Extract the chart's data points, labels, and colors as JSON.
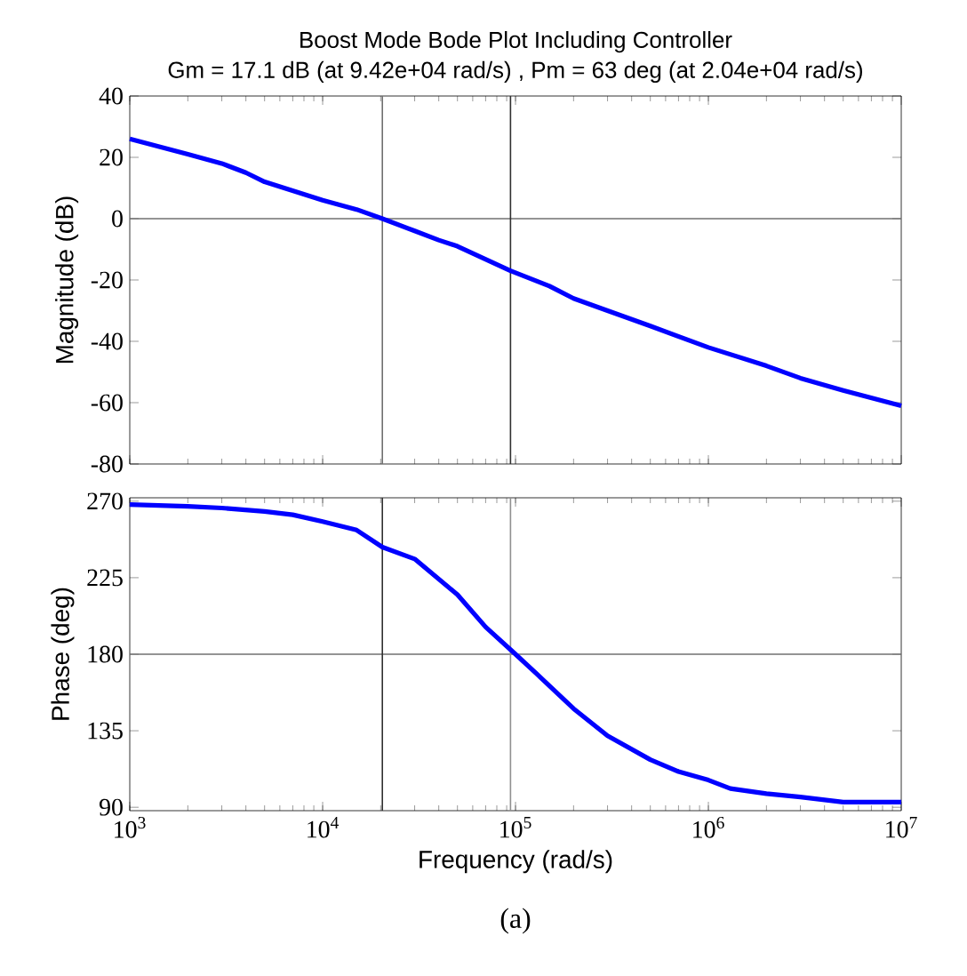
{
  "chart_data": [
    {
      "type": "line",
      "title": "Boost Mode Bode Plot Including Controller",
      "subtitle": "Gm = 17.1 dB (at 9.42e+04 rad/s) ,  Pm = 63 deg (at 2.04e+04 rad/s)",
      "ylabel": "Magnitude (dB)",
      "log": "x",
      "x": [
        1000,
        2000,
        3000,
        4000,
        5000,
        10000,
        15000,
        20400,
        30000,
        40000,
        50000,
        94200,
        150000,
        200000,
        300000,
        500000,
        1000000,
        2000000,
        3000000,
        5000000,
        10000000
      ],
      "series": [
        {
          "color": "#0000ff",
          "values": [
            26,
            21,
            18,
            15,
            12,
            6,
            3,
            0,
            -4,
            -7,
            -9,
            -17,
            -22,
            -26,
            -30,
            -35,
            -42,
            -48,
            -52,
            -56,
            -61
          ]
        }
      ],
      "xlim": [
        1000,
        10000000
      ],
      "xticks": [
        {
          "value": 1000,
          "label": null
        },
        {
          "value": 10000,
          "label": null
        },
        {
          "value": 100000,
          "label": null
        },
        {
          "value": 1000000,
          "label": null
        },
        {
          "value": 10000000,
          "label": null
        }
      ],
      "ylim": [
        -80,
        40
      ],
      "yticks": [
        -80,
        -60,
        -40,
        -20,
        0,
        20,
        40
      ],
      "tick_labels": "y",
      "ref_lines": [
        {
          "axis": "y",
          "value": 0,
          "color": "#707070"
        },
        {
          "axis": "x",
          "value": 20400,
          "color": "#707070"
        },
        {
          "axis": "x",
          "value": 94200,
          "color": "#303030"
        }
      ]
    },
    {
      "type": "line",
      "xlabel": "Frequency  (rad/s)",
      "ylabel": "Phase (deg)",
      "log": "x",
      "annotations": [
        "(a)"
      ],
      "x": [
        1000,
        2000,
        3000,
        5000,
        7000,
        10000,
        15000,
        20400,
        30000,
        50000,
        70000,
        100000,
        130000,
        200000,
        300000,
        500000,
        700000,
        1000000,
        1300000,
        2000000,
        3000000,
        5000000,
        10000000
      ],
      "series": [
        {
          "color": "#0000ff",
          "values": [
            268,
            267,
            266,
            264,
            262,
            258,
            253,
            243,
            236,
            215,
            196,
            180,
            168,
            148,
            132,
            118,
            111,
            106,
            101,
            98,
            96,
            93,
            93
          ]
        }
      ],
      "xlim": [
        1000,
        10000000
      ],
      "xticks": [
        {
          "value": 1000,
          "label": "10$^{3}$"
        },
        {
          "value": 10000,
          "label": "10$^{4}$"
        },
        {
          "value": 100000,
          "label": "10$^{5}$"
        },
        {
          "value": 1000000,
          "label": "10$^{6}$"
        },
        {
          "value": 10000000,
          "label": "10$^{7}$"
        }
      ],
      "ylim": [
        88,
        272
      ],
      "yticks": [
        90,
        135,
        180,
        225,
        270
      ],
      "ref_lines": [
        {
          "axis": "y",
          "value": 180,
          "color": "#707070"
        },
        {
          "axis": "x",
          "value": 20400,
          "color": "#303030"
        },
        {
          "axis": "x",
          "value": 94200,
          "color": "#909090"
        }
      ]
    }
  ]
}
